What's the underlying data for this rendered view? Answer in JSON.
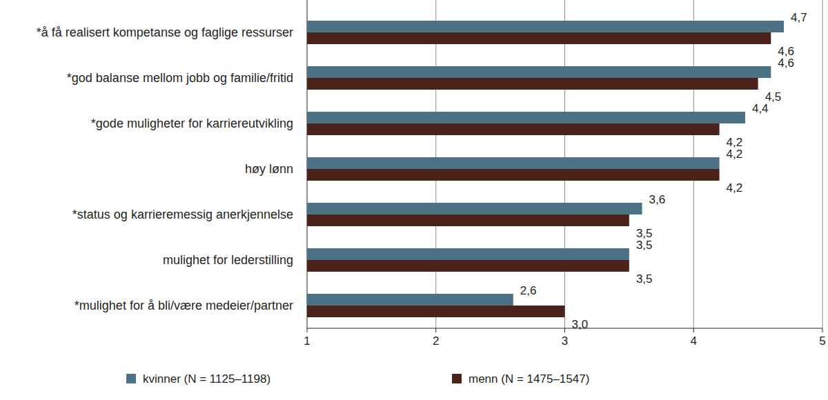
{
  "chart_data": {
    "type": "bar",
    "orientation": "horizontal",
    "categories": [
      "*å få realisert kompetanse og faglige ressurser",
      "*god balanse mellom jobb og familie/fritid",
      "*gode muligheter for karriereutvikling",
      "høy lønn",
      "*status og karrieremessig anerkjennelse",
      "mulighet for lederstilling",
      "*mulighet for å bli/være medeier/partner"
    ],
    "series": [
      {
        "name": "kvinner (N = 1125–1198)",
        "color": "#4b7185",
        "values": [
          4.7,
          4.6,
          4.4,
          4.2,
          3.6,
          3.5,
          2.6
        ],
        "value_labels": [
          "4,7",
          "4,6",
          "4,4",
          "4,2",
          "3,6",
          "3,5",
          "2,6"
        ]
      },
      {
        "name": "menn (N = 1475–1547)",
        "color": "#4c231b",
        "values": [
          4.6,
          4.5,
          4.2,
          4.2,
          3.5,
          3.5,
          3.0
        ],
        "value_labels": [
          "4,6",
          "4,5",
          "4,2",
          "4,2",
          "3,5",
          "3,5",
          "3,0"
        ]
      }
    ],
    "xlim": [
      1,
      5
    ],
    "xticks": [
      1,
      2,
      3,
      4,
      5
    ],
    "grid": true,
    "data_labels": true,
    "legend": "bottom"
  }
}
